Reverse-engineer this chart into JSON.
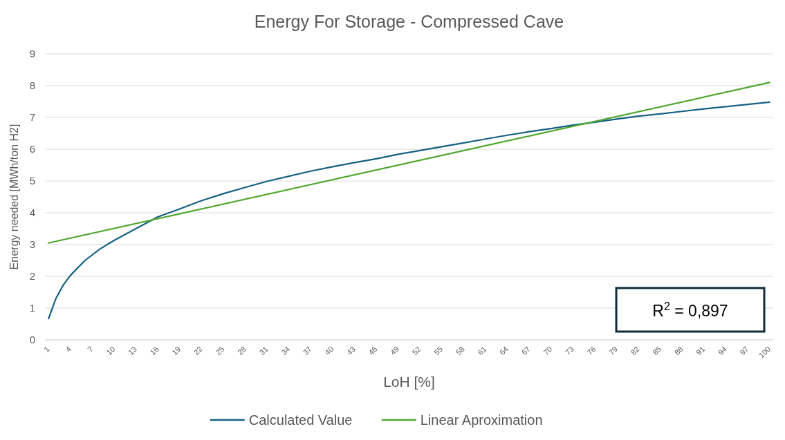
{
  "chart_data": {
    "type": "line",
    "title": "Energy For Storage - Compressed Cave",
    "xlabel": "LoH [%]",
    "ylabel": "Energy needed [MWh/ton H2]",
    "xlim": [
      0.5,
      100.5
    ],
    "xticks": [
      1,
      4,
      7,
      10,
      13,
      16,
      19,
      22,
      25,
      28,
      31,
      34,
      37,
      40,
      43,
      46,
      49,
      52,
      55,
      58,
      61,
      64,
      67,
      70,
      73,
      76,
      79,
      82,
      85,
      88,
      91,
      94,
      97,
      100
    ],
    "ylim": [
      0,
      9
    ],
    "yticks": [
      0,
      1,
      2,
      3,
      4,
      5,
      6,
      7,
      8,
      9
    ],
    "grid": "y",
    "legend": "bottom",
    "marker": "none",
    "line_style": "solid",
    "annotations": [
      "R$^{2}$ = 0,897"
    ],
    "series": [
      {
        "name": "Calculated Value",
        "color": "#156082",
        "x": [
          1,
          2,
          3,
          4,
          6,
          8,
          10,
          13,
          16,
          19,
          22,
          25,
          28,
          31,
          34,
          37,
          40,
          43,
          46,
          49,
          52,
          55,
          58,
          61,
          64,
          67,
          70,
          73,
          76,
          79,
          82,
          85,
          88,
          91,
          94,
          97,
          100
        ],
        "values": [
          0.67,
          1.3,
          1.72,
          2.03,
          2.5,
          2.85,
          3.13,
          3.5,
          3.87,
          4.12,
          4.38,
          4.6,
          4.8,
          4.99,
          5.15,
          5.31,
          5.45,
          5.58,
          5.7,
          5.84,
          5.96,
          6.08,
          6.2,
          6.32,
          6.44,
          6.55,
          6.65,
          6.76,
          6.85,
          6.95,
          7.04,
          7.11,
          7.19,
          7.27,
          7.34,
          7.41,
          7.48
        ]
      },
      {
        "name": "Linear Aproximation",
        "color": "#4ea72e",
        "x": [
          1,
          100
        ],
        "values": [
          3.05,
          8.1
        ]
      }
    ]
  }
}
